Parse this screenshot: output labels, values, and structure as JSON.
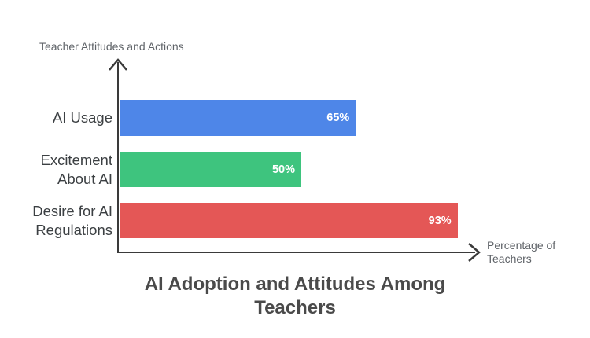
{
  "chart_data": {
    "type": "bar",
    "orientation": "horizontal",
    "title": "AI Adoption and Attitudes Among Teachers",
    "title_lines": [
      "AI Adoption and Attitudes Among",
      "Teachers"
    ],
    "ylabel": "Teacher Attitudes and Actions",
    "xlabel": "Percentage of Teachers",
    "xlabel_lines": [
      "Percentage of",
      "Teachers"
    ],
    "categories": [
      "AI Usage",
      "Excitement About AI",
      "Desire for AI Regulations"
    ],
    "category_lines": [
      [
        "AI Usage"
      ],
      [
        "Excitement",
        "About AI"
      ],
      [
        "Desire for AI",
        "Regulations"
      ]
    ],
    "values": [
      65,
      50,
      93
    ],
    "value_labels": [
      "65%",
      "50%",
      "93%"
    ],
    "xlim": [
      0,
      100
    ],
    "bar_colors": [
      "#4E86E8",
      "#3EC47E",
      "#E45756"
    ],
    "grid": false,
    "legend": false
  },
  "colors": {
    "background": "#ffffff",
    "axis": "#3a3a3a",
    "axis_title_text": "#5f6368",
    "category_text": "#3c4043",
    "title_text": "#4a4a4a",
    "value_text": "#ffffff"
  }
}
